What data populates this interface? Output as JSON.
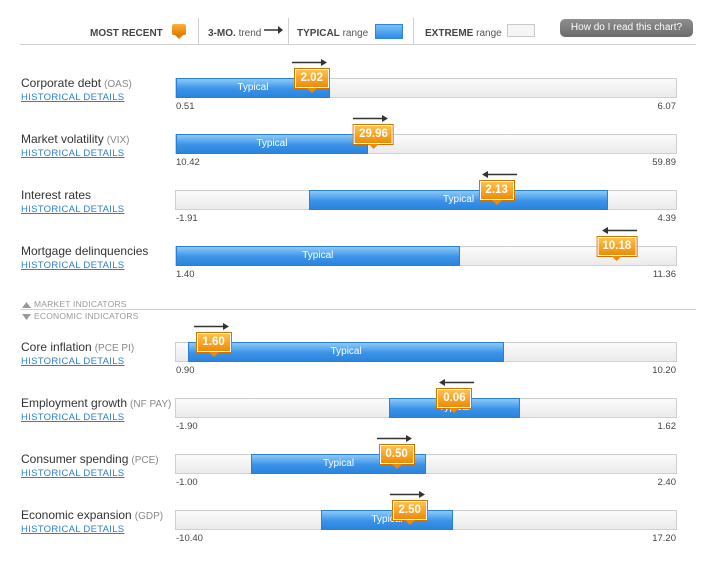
{
  "legend": {
    "most_recent": "MOST RECENT",
    "trend_bold": "3-MO.",
    "trend_text": "trend",
    "typical_bold": "TYPICAL",
    "typical_text": "range",
    "extreme_bold": "EXTREME",
    "extreme_text": "range",
    "help_button": "How do I read this chart?"
  },
  "sections": {
    "market": "MARKET INDICATORS",
    "economic": "ECONOMIC INDICATORS"
  },
  "link_label": "HISTORICAL DETAILS",
  "colors": {
    "typical": "#3a93e9",
    "most_recent": "#ef8a05",
    "extreme": "#f0f0f0"
  },
  "chart_data": {
    "type": "bar",
    "typical_label": "Typical",
    "indicators": [
      {
        "title": "Corporate debt",
        "code": "(OAS)",
        "min": 0.51,
        "max": 6.07,
        "min_label": "0.51",
        "max_label": "6.07",
        "typical": [
          0.51,
          2.22
        ],
        "recent": 2.02,
        "recent_label": "2.02",
        "trend": "right"
      },
      {
        "title": "Market volatility",
        "code": "(VIX)",
        "min": 10.42,
        "max": 59.89,
        "min_label": "10.42",
        "max_label": "59.89",
        "typical": [
          10.42,
          29.4
        ],
        "recent": 29.96,
        "recent_label": "29.96",
        "trend": "right"
      },
      {
        "title": "Interest rates",
        "code": "",
        "min": -1.91,
        "max": 4.39,
        "min_label": "-1.91",
        "max_label": "4.39",
        "typical": [
          -0.23,
          3.53
        ],
        "recent": 2.13,
        "recent_label": "2.13",
        "trend": "left"
      },
      {
        "title": "Mortgage delinquencies",
        "code": "",
        "min": 1.4,
        "max": 11.36,
        "min_label": "1.40",
        "max_label": "11.36",
        "typical": [
          1.4,
          7.05
        ],
        "recent": 10.18,
        "recent_label": "10.18",
        "trend": "left"
      },
      {
        "title": "Core inflation",
        "code": "(PCE PI)",
        "min": 0.9,
        "max": 10.2,
        "min_label": "0.90",
        "max_label": "10.20",
        "typical": [
          1.13,
          7.0
        ],
        "recent": 1.6,
        "recent_label": "1.60",
        "trend": "right"
      },
      {
        "title": "Employment growth",
        "code": "(NF PAY)",
        "min": -1.9,
        "max": 1.62,
        "min_label": "-1.90",
        "max_label": "1.62",
        "typical": [
          -0.4,
          0.52
        ],
        "recent": 0.06,
        "recent_label": "0.06",
        "trend": "left"
      },
      {
        "title": "Consumer spending",
        "code": "(PCE)",
        "min": -1.0,
        "max": 2.4,
        "min_label": "-1.00",
        "max_label": "2.40",
        "typical": [
          -0.49,
          0.7
        ],
        "recent": 0.5,
        "recent_label": "0.50",
        "trend": "right"
      },
      {
        "title": "Economic expansion",
        "code": "(GDP)",
        "min": -10.4,
        "max": 17.2,
        "min_label": "-10.40",
        "max_label": "17.20",
        "typical": [
          -2.4,
          4.9
        ],
        "recent": 2.5,
        "recent_label": "2.50",
        "trend": "right"
      }
    ]
  }
}
